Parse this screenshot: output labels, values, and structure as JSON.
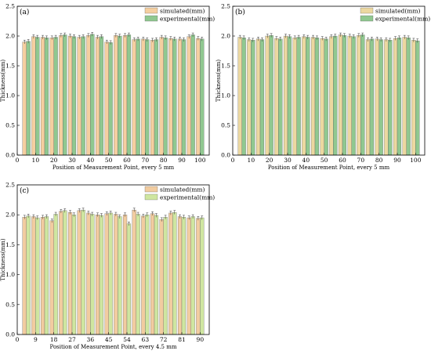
{
  "chart_data": [
    {
      "panel": "(a)",
      "type": "bar",
      "title": "",
      "xlabel": "Position of Measurement Point, every 5 mm",
      "ylabel": "Thickness(mm)",
      "ylim": [
        0,
        2.5
      ],
      "xlim": [
        0,
        105
      ],
      "x_ticks": [
        0,
        10,
        20,
        30,
        40,
        50,
        60,
        70,
        80,
        90,
        100
      ],
      "y_ticks": [
        0.0,
        0.5,
        1.0,
        1.5,
        2.0,
        2.5
      ],
      "legend_position": "top-right",
      "x": [
        5,
        10,
        15,
        20,
        25,
        30,
        35,
        40,
        45,
        50,
        55,
        60,
        65,
        70,
        75,
        80,
        85,
        90,
        95,
        100
      ],
      "series": [
        {
          "name": "simulated(mm)",
          "color": "#f5cfa0",
          "values": [
            1.9,
            1.99,
            1.98,
            1.97,
            2.01,
            2.0,
            1.98,
            2.01,
            1.98,
            1.9,
            2.01,
            2.01,
            1.94,
            1.95,
            1.93,
            1.98,
            1.96,
            1.95,
            1.99,
            1.96
          ]
        },
        {
          "name": "experimental(mm)",
          "color": "#90c890",
          "values": [
            1.91,
            1.98,
            1.97,
            1.98,
            2.02,
            1.99,
            1.99,
            2.03,
            1.99,
            1.89,
            2.0,
            2.02,
            1.95,
            1.94,
            1.94,
            1.97,
            1.95,
            1.94,
            2.02,
            1.95
          ]
        }
      ]
    },
    {
      "panel": "(b)",
      "type": "bar",
      "title": "",
      "xlabel": "Position of Measurement Point, every 5 mm",
      "ylabel": "Thickness(mm)",
      "ylim": [
        0,
        2.5
      ],
      "xlim": [
        0,
        105
      ],
      "x_ticks": [
        0,
        10,
        20,
        30,
        40,
        50,
        60,
        70,
        80,
        90,
        100
      ],
      "y_ticks": [
        0.0,
        0.5,
        1.0,
        1.5,
        2.0,
        2.5
      ],
      "legend_position": "top-right",
      "x": [
        5,
        10,
        15,
        20,
        25,
        30,
        35,
        40,
        45,
        50,
        55,
        60,
        65,
        70,
        75,
        80,
        85,
        90,
        95,
        100
      ],
      "series": [
        {
          "name": "simulated(mm)",
          "color": "#ecd8a0",
          "values": [
            1.98,
            1.94,
            1.95,
            2.0,
            1.96,
            2.0,
            1.97,
            1.99,
            1.98,
            1.96,
            1.99,
            2.02,
            2.0,
            2.01,
            1.94,
            1.95,
            1.94,
            1.96,
            1.98,
            1.93
          ]
        },
        {
          "name": "experimental(mm)",
          "color": "#90c890",
          "values": [
            1.97,
            1.93,
            1.94,
            2.01,
            1.95,
            1.99,
            1.98,
            1.98,
            1.97,
            1.95,
            2.0,
            2.01,
            1.99,
            2.02,
            1.95,
            1.94,
            1.93,
            1.97,
            1.97,
            1.92
          ]
        }
      ]
    },
    {
      "panel": "(c)",
      "type": "bar",
      "title": "",
      "xlabel": "Position of Measurement Point, every 4.5 mm",
      "ylabel": "Thickness(mm)",
      "ylim": [
        0,
        2.5
      ],
      "xlim": [
        0,
        94.5
      ],
      "x_ticks": [
        0,
        9,
        18,
        27,
        36,
        45,
        54,
        63,
        72,
        81,
        90
      ],
      "y_ticks": [
        0.0,
        0.5,
        1.0,
        1.5,
        2.0,
        2.5
      ],
      "legend_position": "top-right",
      "x": [
        4.5,
        9,
        13.5,
        18,
        22.5,
        27,
        31.5,
        36,
        40.5,
        45,
        49.5,
        54,
        58.5,
        63,
        67.5,
        72,
        76.5,
        81,
        85.5,
        90
      ],
      "series": [
        {
          "name": "simulated(mm)",
          "color": "#f2cca0",
          "values": [
            1.96,
            1.97,
            1.96,
            1.9,
            2.06,
            2.04,
            2.07,
            2.03,
            2.0,
            2.02,
            2.01,
            2.0,
            2.08,
            1.98,
            2.02,
            1.92,
            2.03,
            1.97,
            1.95,
            1.94
          ]
        },
        {
          "name": "experimental(mm)",
          "color": "#cfe6a0",
          "values": [
            1.98,
            1.95,
            1.97,
            2.01,
            2.07,
            2.0,
            2.08,
            2.01,
            1.99,
            2.03,
            1.97,
            1.85,
            2.01,
            2.0,
            1.99,
            1.96,
            2.04,
            1.96,
            1.97,
            1.95
          ]
        }
      ]
    }
  ]
}
